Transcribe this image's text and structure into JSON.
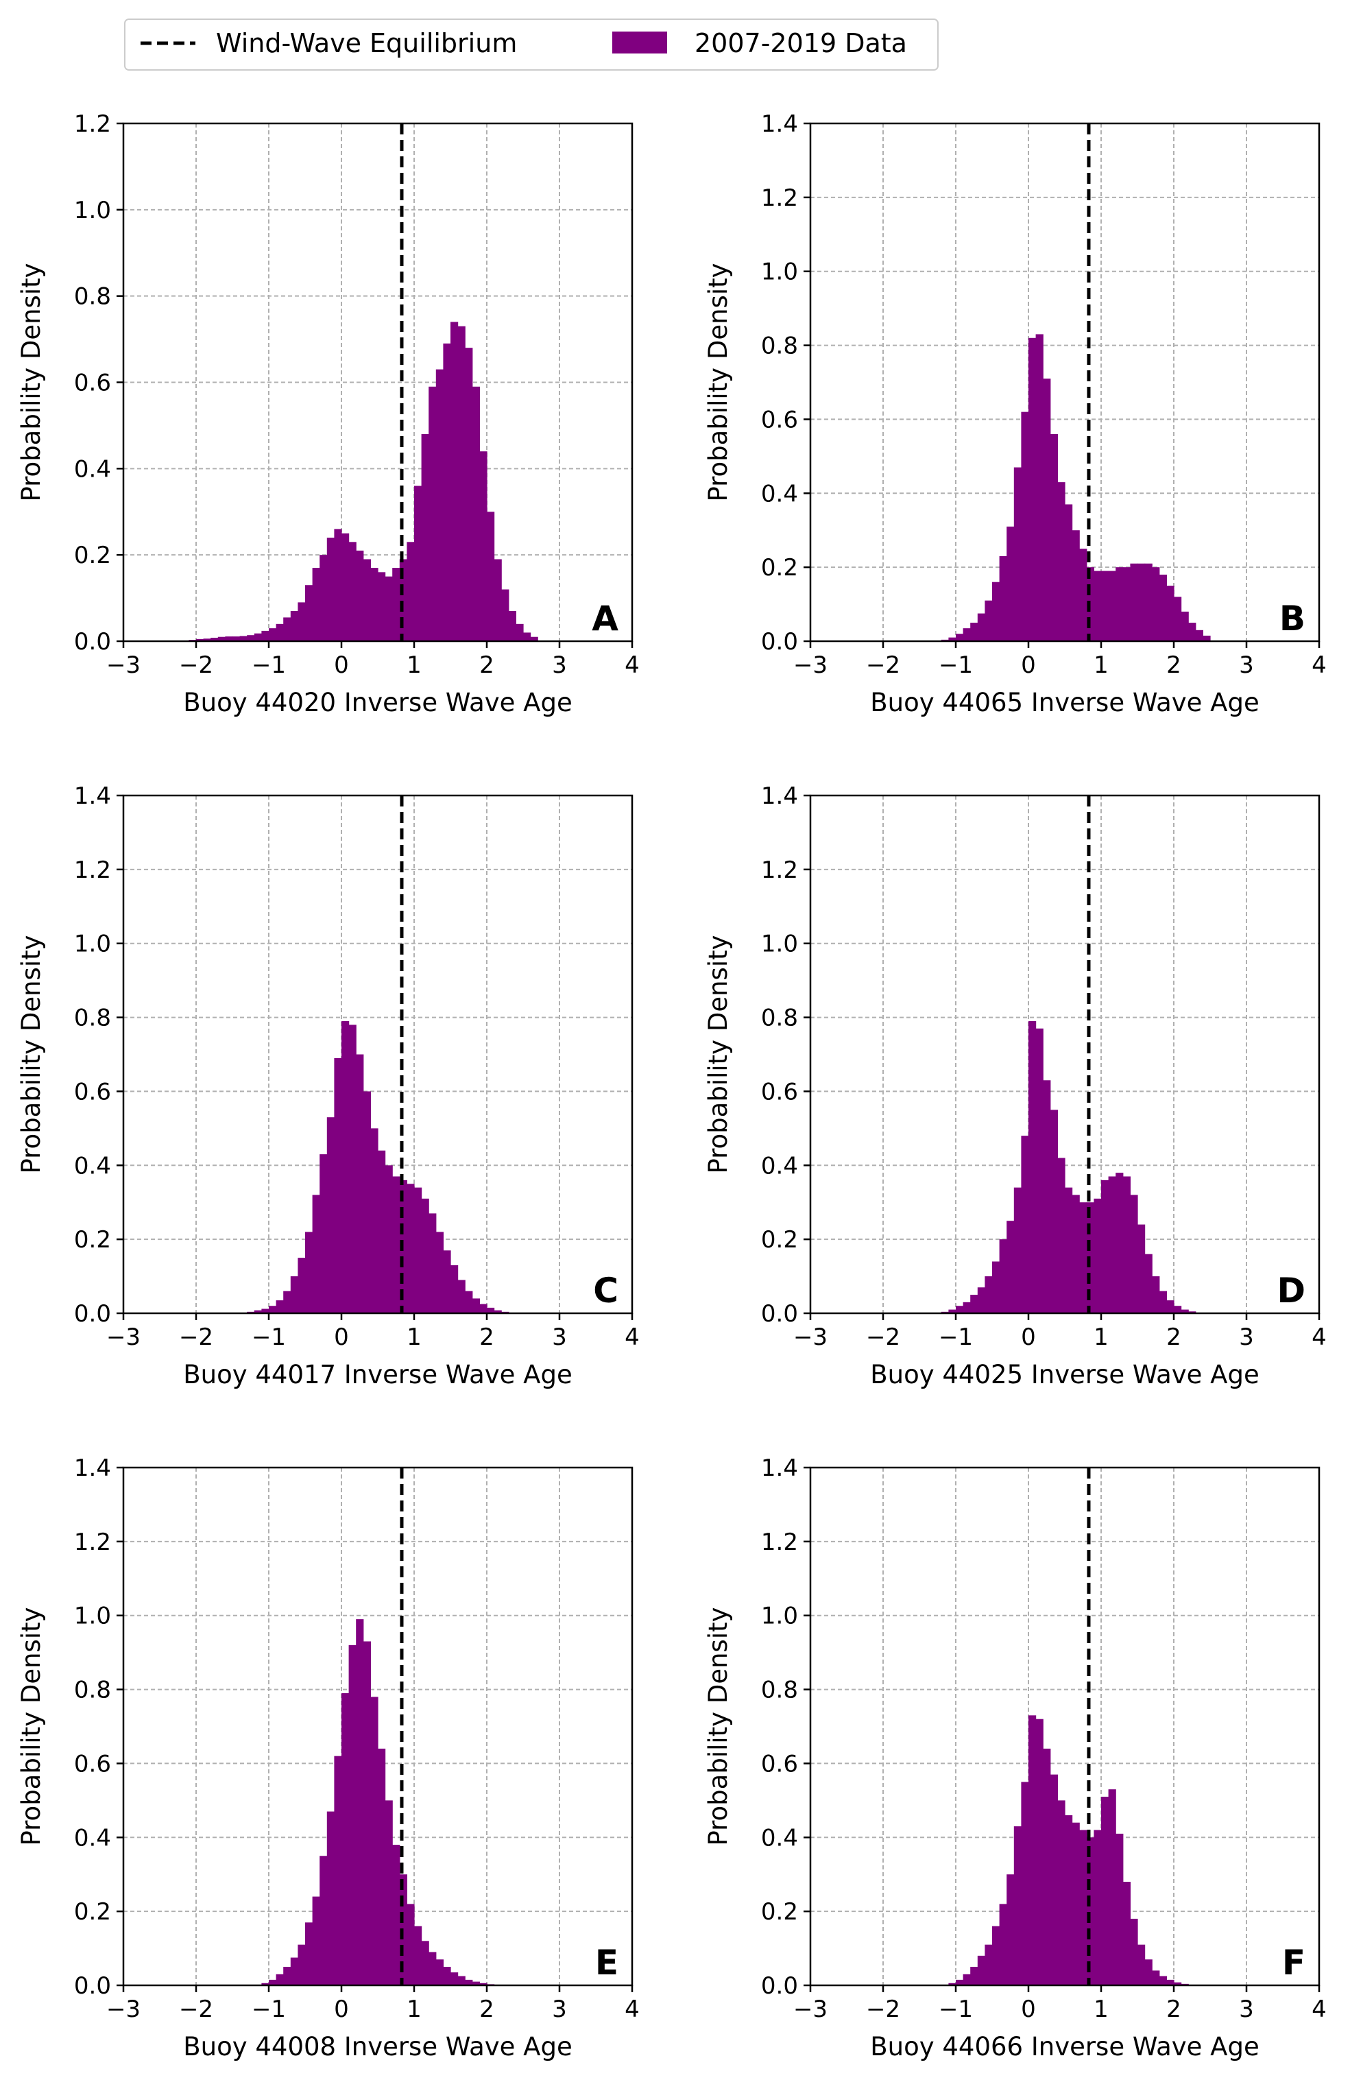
{
  "legend": {
    "placement": "top-left",
    "entries": [
      {
        "label": "Wind-Wave Equilibrium",
        "style": "dashed-line",
        "color": "#000000"
      },
      {
        "label": "2007-2019 Data",
        "style": "filled-box",
        "color": "#800080"
      }
    ]
  },
  "colors": {
    "histogram": "#800080",
    "equilibrium": "#000000",
    "grid": "#b0b0b0"
  },
  "chart_data": [
    {
      "type": "bar",
      "panel": "A",
      "xlabel": "Buoy 44020 Inverse Wave Age",
      "ylabel": "Probability Density",
      "xlim": [
        -3,
        4
      ],
      "ylim": [
        0,
        1.2
      ],
      "xticks": [
        "−3",
        "−2",
        "−1",
        "0",
        "1",
        "2",
        "3",
        "4"
      ],
      "yticks": [
        "0.0",
        "0.2",
        "0.4",
        "0.6",
        "0.8",
        "1.0",
        "1.2"
      ],
      "grid": true,
      "equilibrium_x": 0.83,
      "bin_width": 0.1,
      "bins": [
        [
          -2.1,
          0.003
        ],
        [
          -2.0,
          0.005
        ],
        [
          -1.9,
          0.006
        ],
        [
          -1.8,
          0.008
        ],
        [
          -1.7,
          0.01
        ],
        [
          -1.6,
          0.011
        ],
        [
          -1.5,
          0.011
        ],
        [
          -1.4,
          0.012
        ],
        [
          -1.3,
          0.014
        ],
        [
          -1.2,
          0.018
        ],
        [
          -1.1,
          0.024
        ],
        [
          -1.0,
          0.03
        ],
        [
          -0.9,
          0.04
        ],
        [
          -0.8,
          0.055
        ],
        [
          -0.7,
          0.07
        ],
        [
          -0.6,
          0.09
        ],
        [
          -0.5,
          0.13
        ],
        [
          -0.4,
          0.17
        ],
        [
          -0.3,
          0.2
        ],
        [
          -0.2,
          0.24
        ],
        [
          -0.1,
          0.26
        ],
        [
          0.0,
          0.25
        ],
        [
          0.1,
          0.23
        ],
        [
          0.2,
          0.21
        ],
        [
          0.3,
          0.19
        ],
        [
          0.4,
          0.17
        ],
        [
          0.5,
          0.16
        ],
        [
          0.6,
          0.15
        ],
        [
          0.7,
          0.17
        ],
        [
          0.8,
          0.19
        ],
        [
          0.9,
          0.23
        ],
        [
          1.0,
          0.36
        ],
        [
          1.1,
          0.48
        ],
        [
          1.2,
          0.59
        ],
        [
          1.3,
          0.63
        ],
        [
          1.4,
          0.69
        ],
        [
          1.5,
          0.74
        ],
        [
          1.6,
          0.73
        ],
        [
          1.7,
          0.68
        ],
        [
          1.8,
          0.59
        ],
        [
          1.9,
          0.44
        ],
        [
          2.0,
          0.3
        ],
        [
          2.1,
          0.19
        ],
        [
          2.2,
          0.12
        ],
        [
          2.3,
          0.07
        ],
        [
          2.4,
          0.04
        ],
        [
          2.5,
          0.02
        ],
        [
          2.6,
          0.01
        ]
      ]
    },
    {
      "type": "bar",
      "panel": "B",
      "xlabel": "Buoy 44065 Inverse Wave Age",
      "ylabel": "Probability Density",
      "xlim": [
        -3,
        4
      ],
      "ylim": [
        0,
        1.4
      ],
      "xticks": [
        "−3",
        "−2",
        "−1",
        "0",
        "1",
        "2",
        "3",
        "4"
      ],
      "yticks": [
        "0.0",
        "0.2",
        "0.4",
        "0.6",
        "0.8",
        "1.0",
        "1.2",
        "1.4"
      ],
      "grid": true,
      "equilibrium_x": 0.83,
      "bin_width": 0.1,
      "bins": [
        [
          -1.2,
          0.004
        ],
        [
          -1.1,
          0.01
        ],
        [
          -1.0,
          0.02
        ],
        [
          -0.9,
          0.035
        ],
        [
          -0.8,
          0.05
        ],
        [
          -0.7,
          0.075
        ],
        [
          -0.6,
          0.11
        ],
        [
          -0.5,
          0.16
        ],
        [
          -0.4,
          0.23
        ],
        [
          -0.3,
          0.31
        ],
        [
          -0.2,
          0.47
        ],
        [
          -0.1,
          0.62
        ],
        [
          0.0,
          0.82
        ],
        [
          0.1,
          0.83
        ],
        [
          0.2,
          0.71
        ],
        [
          0.3,
          0.56
        ],
        [
          0.4,
          0.43
        ],
        [
          0.5,
          0.37
        ],
        [
          0.6,
          0.3
        ],
        [
          0.7,
          0.25
        ],
        [
          0.8,
          0.2
        ],
        [
          0.9,
          0.19
        ],
        [
          1.0,
          0.19
        ],
        [
          1.1,
          0.19
        ],
        [
          1.2,
          0.2
        ],
        [
          1.3,
          0.2
        ],
        [
          1.4,
          0.21
        ],
        [
          1.5,
          0.21
        ],
        [
          1.6,
          0.21
        ],
        [
          1.7,
          0.2
        ],
        [
          1.8,
          0.18
        ],
        [
          1.9,
          0.15
        ],
        [
          2.0,
          0.12
        ],
        [
          2.1,
          0.08
        ],
        [
          2.2,
          0.05
        ],
        [
          2.3,
          0.03
        ],
        [
          2.4,
          0.015
        ]
      ]
    },
    {
      "type": "bar",
      "panel": "C",
      "xlabel": "Buoy 44017 Inverse Wave Age",
      "ylabel": "Probability Density",
      "xlim": [
        -3,
        4
      ],
      "ylim": [
        0,
        1.4
      ],
      "xticks": [
        "−3",
        "−2",
        "−1",
        "0",
        "1",
        "2",
        "3",
        "4"
      ],
      "yticks": [
        "0.0",
        "0.2",
        "0.4",
        "0.6",
        "0.8",
        "1.0",
        "1.2",
        "1.4"
      ],
      "grid": true,
      "equilibrium_x": 0.83,
      "bin_width": 0.1,
      "bins": [
        [
          -1.3,
          0.004
        ],
        [
          -1.2,
          0.008
        ],
        [
          -1.1,
          0.012
        ],
        [
          -1.0,
          0.02
        ],
        [
          -0.9,
          0.035
        ],
        [
          -0.8,
          0.06
        ],
        [
          -0.7,
          0.1
        ],
        [
          -0.6,
          0.15
        ],
        [
          -0.5,
          0.22
        ],
        [
          -0.4,
          0.32
        ],
        [
          -0.3,
          0.43
        ],
        [
          -0.2,
          0.53
        ],
        [
          -0.1,
          0.69
        ],
        [
          0.0,
          0.79
        ],
        [
          0.1,
          0.78
        ],
        [
          0.2,
          0.7
        ],
        [
          0.3,
          0.6
        ],
        [
          0.4,
          0.5
        ],
        [
          0.5,
          0.44
        ],
        [
          0.6,
          0.4
        ],
        [
          0.7,
          0.37
        ],
        [
          0.8,
          0.36
        ],
        [
          0.9,
          0.35
        ],
        [
          1.0,
          0.34
        ],
        [
          1.1,
          0.31
        ],
        [
          1.2,
          0.27
        ],
        [
          1.3,
          0.22
        ],
        [
          1.4,
          0.17
        ],
        [
          1.5,
          0.13
        ],
        [
          1.6,
          0.09
        ],
        [
          1.7,
          0.06
        ],
        [
          1.8,
          0.04
        ],
        [
          1.9,
          0.025
        ],
        [
          2.0,
          0.015
        ],
        [
          2.1,
          0.008
        ],
        [
          2.2,
          0.004
        ]
      ]
    },
    {
      "type": "bar",
      "panel": "D",
      "xlabel": "Buoy 44025 Inverse Wave Age",
      "ylabel": "Probability Density",
      "xlim": [
        -3,
        4
      ],
      "ylim": [
        0,
        1.4
      ],
      "xticks": [
        "−3",
        "−2",
        "−1",
        "0",
        "1",
        "2",
        "3",
        "4"
      ],
      "yticks": [
        "0.0",
        "0.2",
        "0.4",
        "0.6",
        "0.8",
        "1.0",
        "1.2",
        "1.4"
      ],
      "grid": true,
      "equilibrium_x": 0.83,
      "bin_width": 0.1,
      "bins": [
        [
          -1.2,
          0.004
        ],
        [
          -1.1,
          0.01
        ],
        [
          -1.0,
          0.02
        ],
        [
          -0.9,
          0.03
        ],
        [
          -0.8,
          0.05
        ],
        [
          -0.7,
          0.07
        ],
        [
          -0.6,
          0.1
        ],
        [
          -0.5,
          0.14
        ],
        [
          -0.4,
          0.2
        ],
        [
          -0.3,
          0.25
        ],
        [
          -0.2,
          0.34
        ],
        [
          -0.1,
          0.48
        ],
        [
          0.0,
          0.79
        ],
        [
          0.1,
          0.77
        ],
        [
          0.2,
          0.63
        ],
        [
          0.3,
          0.55
        ],
        [
          0.4,
          0.42
        ],
        [
          0.5,
          0.34
        ],
        [
          0.6,
          0.32
        ],
        [
          0.7,
          0.3
        ],
        [
          0.8,
          0.3
        ],
        [
          0.9,
          0.31
        ],
        [
          1.0,
          0.36
        ],
        [
          1.1,
          0.37
        ],
        [
          1.2,
          0.38
        ],
        [
          1.3,
          0.37
        ],
        [
          1.4,
          0.32
        ],
        [
          1.5,
          0.24
        ],
        [
          1.6,
          0.16
        ],
        [
          1.7,
          0.1
        ],
        [
          1.8,
          0.06
        ],
        [
          1.9,
          0.035
        ],
        [
          2.0,
          0.02
        ],
        [
          2.1,
          0.01
        ],
        [
          2.2,
          0.005
        ]
      ]
    },
    {
      "type": "bar",
      "panel": "E",
      "xlabel": "Buoy 44008 Inverse Wave Age",
      "ylabel": "Probability Density",
      "xlim": [
        -3,
        4
      ],
      "ylim": [
        0,
        1.4
      ],
      "xticks": [
        "−3",
        "−2",
        "−1",
        "0",
        "1",
        "2",
        "3",
        "4"
      ],
      "yticks": [
        "0.0",
        "0.2",
        "0.4",
        "0.6",
        "0.8",
        "1.0",
        "1.2",
        "1.4"
      ],
      "grid": true,
      "equilibrium_x": 0.83,
      "bin_width": 0.1,
      "bins": [
        [
          -1.1,
          0.006
        ],
        [
          -1.0,
          0.015
        ],
        [
          -0.9,
          0.03
        ],
        [
          -0.8,
          0.05
        ],
        [
          -0.7,
          0.075
        ],
        [
          -0.6,
          0.11
        ],
        [
          -0.5,
          0.17
        ],
        [
          -0.4,
          0.24
        ],
        [
          -0.3,
          0.35
        ],
        [
          -0.2,
          0.47
        ],
        [
          -0.1,
          0.62
        ],
        [
          0.0,
          0.79
        ],
        [
          0.1,
          0.92
        ],
        [
          0.2,
          0.99
        ],
        [
          0.3,
          0.93
        ],
        [
          0.4,
          0.78
        ],
        [
          0.5,
          0.64
        ],
        [
          0.6,
          0.5
        ],
        [
          0.7,
          0.38
        ],
        [
          0.8,
          0.3
        ],
        [
          0.9,
          0.22
        ],
        [
          1.0,
          0.16
        ],
        [
          1.1,
          0.12
        ],
        [
          1.2,
          0.09
        ],
        [
          1.3,
          0.07
        ],
        [
          1.4,
          0.05
        ],
        [
          1.5,
          0.035
        ],
        [
          1.6,
          0.025
        ],
        [
          1.7,
          0.015
        ],
        [
          1.8,
          0.01
        ],
        [
          1.9,
          0.006
        ],
        [
          2.0,
          0.003
        ]
      ]
    },
    {
      "type": "bar",
      "panel": "F",
      "xlabel": "Buoy 44066 Inverse Wave Age",
      "ylabel": "Probability Density",
      "xlim": [
        -3,
        4
      ],
      "ylim": [
        0,
        1.4
      ],
      "xticks": [
        "−3",
        "−2",
        "−1",
        "0",
        "1",
        "2",
        "3",
        "4"
      ],
      "yticks": [
        "0.0",
        "0.2",
        "0.4",
        "0.6",
        "0.8",
        "1.0",
        "1.2",
        "1.4"
      ],
      "grid": true,
      "equilibrium_x": 0.83,
      "bin_width": 0.1,
      "bins": [
        [
          -1.1,
          0.006
        ],
        [
          -1.0,
          0.015
        ],
        [
          -0.9,
          0.03
        ],
        [
          -0.8,
          0.05
        ],
        [
          -0.7,
          0.08
        ],
        [
          -0.6,
          0.11
        ],
        [
          -0.5,
          0.16
        ],
        [
          -0.4,
          0.22
        ],
        [
          -0.3,
          0.3
        ],
        [
          -0.2,
          0.43
        ],
        [
          -0.1,
          0.55
        ],
        [
          0.0,
          0.73
        ],
        [
          0.1,
          0.72
        ],
        [
          0.2,
          0.64
        ],
        [
          0.3,
          0.57
        ],
        [
          0.4,
          0.5
        ],
        [
          0.5,
          0.46
        ],
        [
          0.6,
          0.44
        ],
        [
          0.7,
          0.42
        ],
        [
          0.8,
          0.4
        ],
        [
          0.9,
          0.42
        ],
        [
          1.0,
          0.51
        ],
        [
          1.1,
          0.53
        ],
        [
          1.2,
          0.41
        ],
        [
          1.3,
          0.28
        ],
        [
          1.4,
          0.18
        ],
        [
          1.5,
          0.11
        ],
        [
          1.6,
          0.07
        ],
        [
          1.7,
          0.04
        ],
        [
          1.8,
          0.025
        ],
        [
          1.9,
          0.015
        ],
        [
          2.0,
          0.008
        ],
        [
          2.1,
          0.004
        ]
      ]
    }
  ]
}
